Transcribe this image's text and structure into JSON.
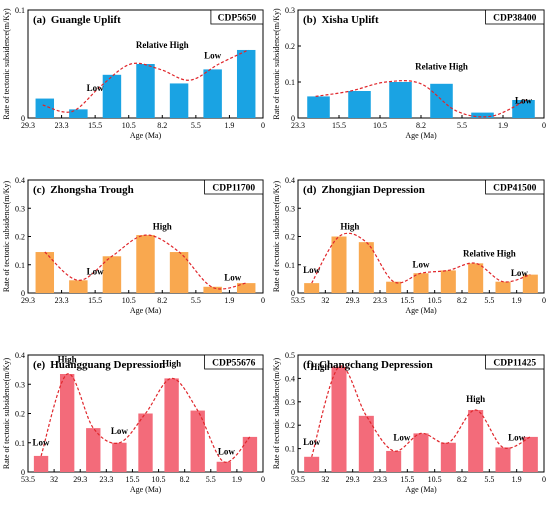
{
  "colors": {
    "blue": "#1aa3e3",
    "orange": "#f9a84f",
    "pink": "#f36b7a",
    "trend": "#e0262b"
  },
  "chart_data": [
    {
      "type": "bar",
      "panel": "(a)",
      "title": "Guangle Uplift",
      "cdp": "CDP5650",
      "color": "blue",
      "xlabel": "Age (Ma)",
      "ylabel": "Rate of tectonic subsidence(m/Ky)",
      "ylim": [
        0,
        0.1
      ],
      "yticks": [
        0,
        0.1
      ],
      "xticks": [
        "29.3",
        "23.3",
        "15.5",
        "10.5",
        "8.2",
        "5.5",
        "1.9",
        "0"
      ],
      "values": [
        0.018,
        0.008,
        0.04,
        0.05,
        0.032,
        0.045,
        0.063
      ],
      "trend": [
        0.012,
        0.006,
        0.03,
        0.05,
        0.045,
        0.035,
        0.05,
        0.063
      ],
      "annotations": [
        {
          "text": "Low",
          "x": 1.5,
          "y": 0.025
        },
        {
          "text": "Relative High",
          "x": 3.5,
          "y": 0.065
        },
        {
          "text": "Low",
          "x": 5.0,
          "y": 0.055
        }
      ]
    },
    {
      "type": "bar",
      "panel": "(b)",
      "title": "Xisha Uplift",
      "cdp": "CDP38400",
      "color": "blue",
      "xlabel": "Age (Ma)",
      "ylabel": "Rate of tectonic subsidence(m/Ky)",
      "ylim": [
        0,
        0.3
      ],
      "yticks": [
        0,
        0.1,
        0.2,
        0.3
      ],
      "xticks": [
        "23.3",
        "15.5",
        "10.5",
        "8.2",
        "5.5",
        "1.9",
        "0"
      ],
      "values": [
        0.06,
        0.075,
        0.1,
        0.095,
        0.015,
        0.05
      ],
      "trend": [
        0.06,
        0.075,
        0.1,
        0.095,
        0.02,
        0.005,
        0.05
      ],
      "annotations": [
        {
          "text": "Relative High",
          "x": 3.0,
          "y": 0.135
        },
        {
          "text": "Low",
          "x": 5.0,
          "y": 0.04
        }
      ]
    },
    {
      "type": "bar",
      "panel": "(c)",
      "title": "Zhongsha Trough",
      "cdp": "CDP11700",
      "color": "orange",
      "xlabel": "Age (Ma)",
      "ylabel": "Rate of tectonic subsidence(m/Ky)",
      "ylim": [
        0,
        0.4
      ],
      "yticks": [
        0,
        0.1,
        0.2,
        0.3,
        0.4
      ],
      "xticks": [
        "29.3",
        "23.3",
        "15.5",
        "10.5",
        "8.2",
        "5.5",
        "1.9",
        "0"
      ],
      "values": [
        0.145,
        0.045,
        0.13,
        0.205,
        0.145,
        0.022,
        0.035
      ],
      "trend": [
        0.145,
        0.045,
        0.13,
        0.205,
        0.145,
        0.02,
        0.035
      ],
      "annotations": [
        {
          "text": "Low",
          "x": 1.5,
          "y": 0.065
        },
        {
          "text": "High",
          "x": 3.5,
          "y": 0.225
        },
        {
          "text": "Low",
          "x": 5.6,
          "y": 0.045
        }
      ]
    },
    {
      "type": "bar",
      "panel": "(d)",
      "title": "Zhongjian Depression",
      "cdp": "CDP41500",
      "color": "orange",
      "xlabel": "Age (Ma)",
      "ylabel": "Rate of tectonic subsidence(m/Ky)",
      "ylim": [
        0,
        0.4
      ],
      "yticks": [
        0,
        0.1,
        0.2,
        0.3,
        0.4
      ],
      "xticks": [
        "53.5",
        "32",
        "29.3",
        "23.3",
        "15.5",
        "10.5",
        "8.2",
        "5.5",
        "1.9",
        "0"
      ],
      "values": [
        0.035,
        0.2,
        0.18,
        0.04,
        0.07,
        0.08,
        0.105,
        0.04,
        0.065
      ],
      "trend": [
        0.035,
        0.2,
        0.18,
        0.04,
        0.07,
        0.08,
        0.105,
        0.04,
        0.065
      ],
      "annotations": [
        {
          "text": "Low",
          "x": 0.0,
          "y": 0.07
        },
        {
          "text": "High",
          "x": 1.4,
          "y": 0.225
        },
        {
          "text": "Low",
          "x": 4.0,
          "y": 0.09
        },
        {
          "text": "Relative High",
          "x": 6.5,
          "y": 0.13
        },
        {
          "text": "Low",
          "x": 7.6,
          "y": 0.06
        }
      ]
    },
    {
      "type": "bar",
      "panel": "(e)",
      "title": "Huangguang Depression",
      "cdp": "CDP55676",
      "color": "pink",
      "xlabel": "Age (Ma)",
      "ylabel": "Rate of tectonic subsidence(m/Ky)",
      "ylim": [
        0,
        0.4
      ],
      "yticks": [
        0,
        0.1,
        0.2,
        0.3,
        0.4
      ],
      "xticks": [
        "53.5",
        "32",
        "29.3",
        "23.3",
        "15.5",
        "10.5",
        "8.2",
        "5.5",
        "1.9",
        "0"
      ],
      "values": [
        0.055,
        0.335,
        0.15,
        0.1,
        0.2,
        0.32,
        0.21,
        0.035,
        0.12
      ],
      "trend": [
        0.055,
        0.335,
        0.15,
        0.1,
        0.2,
        0.32,
        0.21,
        0.035,
        0.12
      ],
      "annotations": [
        {
          "text": "Low",
          "x": 0.0,
          "y": 0.09
        },
        {
          "text": "High",
          "x": 1.0,
          "y": 0.375
        },
        {
          "text": "Low",
          "x": 3.0,
          "y": 0.13
        },
        {
          "text": "High",
          "x": 5.0,
          "y": 0.36
        },
        {
          "text": "Low",
          "x": 7.1,
          "y": 0.06
        }
      ]
    },
    {
      "type": "bar",
      "panel": "(f)",
      "title": "Changchang Depression",
      "cdp": "CDP11425",
      "color": "pink",
      "xlabel": "Age (Ma)",
      "ylabel": "Rate of tectonic subsidence(m/Ky)",
      "ylim": [
        0,
        0.5
      ],
      "yticks": [
        0,
        0.1,
        0.2,
        0.3,
        0.4,
        0.5
      ],
      "xticks": [
        "53.5",
        "32",
        "29.3",
        "23.3",
        "15.5",
        "10.5",
        "8.2",
        "5.5",
        "1.9",
        "0"
      ],
      "values": [
        0.065,
        0.45,
        0.24,
        0.09,
        0.165,
        0.125,
        0.265,
        0.105,
        0.15
      ],
      "trend": [
        0.065,
        0.45,
        0.24,
        0.09,
        0.165,
        0.125,
        0.265,
        0.105,
        0.15
      ],
      "annotations": [
        {
          "text": "Low",
          "x": 0.0,
          "y": 0.115
        },
        {
          "text": "High",
          "x": 0.3,
          "y": 0.435
        },
        {
          "text": "Low",
          "x": 3.3,
          "y": 0.135
        },
        {
          "text": "High",
          "x": 6.0,
          "y": 0.3
        },
        {
          "text": "Low",
          "x": 7.5,
          "y": 0.135
        }
      ]
    }
  ]
}
